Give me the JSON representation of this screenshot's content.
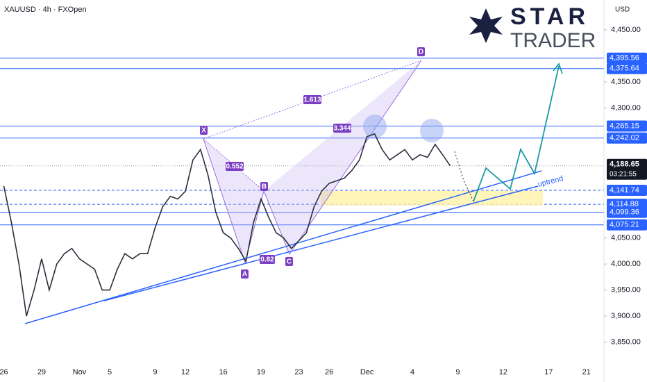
{
  "chart_data": {
    "type": "line",
    "title": "XAUUSD · 4h · FXOpen",
    "currency": "USD",
    "logo": {
      "top": "STAR",
      "bottom": "TRADER"
    },
    "categories": [
      "26",
      null,
      null,
      null,
      null,
      "29",
      null,
      null,
      null,
      null,
      "Nov",
      null,
      null,
      null,
      "5",
      null,
      null,
      null,
      null,
      null,
      "9",
      null,
      null,
      null,
      "12",
      null,
      null,
      null,
      null,
      "16",
      null,
      null,
      null,
      null,
      "19",
      null,
      null,
      null,
      null,
      "23",
      null,
      null,
      null,
      "26",
      null,
      null,
      null,
      null,
      "Dec",
      null,
      null,
      null,
      null,
      null,
      "4",
      null,
      null,
      null,
      null,
      null,
      "9",
      null,
      null,
      null,
      null,
      null,
      "12",
      null,
      null,
      null,
      null,
      null,
      "17",
      null,
      null,
      null,
      null,
      "21",
      null,
      null
    ],
    "series": [
      {
        "name": "XAUUSD",
        "color": "#2a2e39",
        "values": [
          4150,
          4080,
          4000,
          3900,
          3950,
          4010,
          3950,
          4000,
          4020,
          4030,
          4010,
          4000,
          3990,
          3950,
          3950,
          3990,
          4020,
          4010,
          4020,
          4020,
          4070,
          4110,
          4130,
          4125,
          4140,
          4200,
          4220,
          4170,
          4100,
          4060,
          4050,
          4030,
          4005,
          4080,
          4125,
          4090,
          4060,
          4050,
          4030,
          4045,
          4060,
          4110,
          4140,
          4155,
          4160,
          4165,
          4180,
          4200,
          4245,
          4250,
          4220,
          4200,
          4210,
          4220,
          4200,
          4210,
          4205,
          4230,
          4210,
          4188.65,
          null,
          null,
          null,
          null,
          null,
          null,
          null,
          null,
          null,
          null,
          null,
          null,
          null,
          null,
          null,
          null,
          null,
          null,
          null,
          null
        ]
      }
    ],
    "ylim": [
      3800,
      4480
    ],
    "yticks": [
      {
        "value": 3850,
        "label": "3,850.00"
      },
      {
        "value": 3900,
        "label": "3,900.00"
      },
      {
        "value": 3950,
        "label": "3,950.00"
      },
      {
        "value": 4000,
        "label": "4,000.00"
      },
      {
        "value": 4050,
        "label": "4,050.00"
      },
      {
        "value": 4300,
        "label": "4,300.00"
      },
      {
        "value": 4350,
        "label": "4,350.00"
      },
      {
        "value": 4450,
        "label": "4,450.00"
      }
    ],
    "levels": [
      4395.56,
      4375.64,
      4265.15,
      4242.02,
      4141.74,
      4114.88,
      4099.36,
      4075.21
    ],
    "level_labels": [
      "4,395.56",
      "4,375.64",
      "4,265.15",
      "4,242.02",
      "4,141.74",
      "4,114.88",
      "4,099.36",
      "4,075.21"
    ],
    "level_color": "#2962ff",
    "last_price": 4188.65,
    "last_price_label": "4,188.65",
    "countdown": "03:21:55",
    "annotations": {
      "X": "X",
      "A": "A",
      "B": "B",
      "C": "C",
      "D": "D",
      "xb": "0.552",
      "xd": "1.613",
      "bd": "3.344",
      "ac": "0.82",
      "trend": "uptrend"
    }
  }
}
